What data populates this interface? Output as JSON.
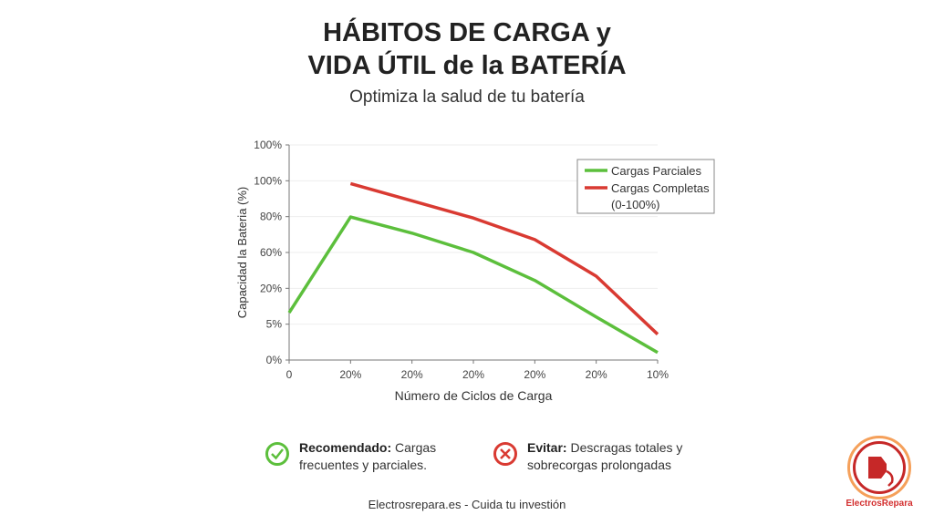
{
  "header": {
    "title_line1": "HÁBITOS DE CARGA y",
    "title_line2": "VIDA ÚTIL de la BATERÍA",
    "subtitle": "Optimiza la salud de tu batería"
  },
  "chart_data": {
    "type": "line",
    "xlabel": "Número de Ciclos de Carga",
    "ylabel": "Capacidad la Bateria (%)",
    "categories": [
      "0",
      "20%",
      "20%",
      "20%",
      "20%",
      "20%",
      "10%"
    ],
    "y_tick_labels": [
      "0%",
      "5%",
      "20%",
      "60%",
      "80%",
      "100%",
      "100%"
    ],
    "ylim": [
      0,
      100
    ],
    "grid": true,
    "legend_position": "top-right",
    "series": [
      {
        "name": "Cargas Parciales",
        "color": "#5cbf3c",
        "values": [
          22,
          66.5,
          59,
          50,
          37,
          20,
          3.5
        ]
      },
      {
        "name": "Cargas Completas",
        "name_line2": "(0-100%)",
        "color": "#d93a32",
        "values": [
          null,
          82,
          74,
          66,
          56,
          39,
          12
        ]
      }
    ]
  },
  "notes": {
    "recommended": {
      "label": "Recomendado:",
      "text1": "Cargas",
      "text2": "frecuentes y parciales.",
      "icon": "check-circle-icon",
      "color": "#5cbf3c"
    },
    "avoid": {
      "label": "Evitar:",
      "text1": "Descragas totales y",
      "text2": "sobrecorgas prolongadas",
      "icon": "x-circle-icon",
      "color": "#d93a32"
    }
  },
  "footer": "Electrosrepara.es - Cuida tu investión",
  "logo": {
    "text": "ElectrosRepara",
    "icon": "ev-charger-plug-icon"
  }
}
